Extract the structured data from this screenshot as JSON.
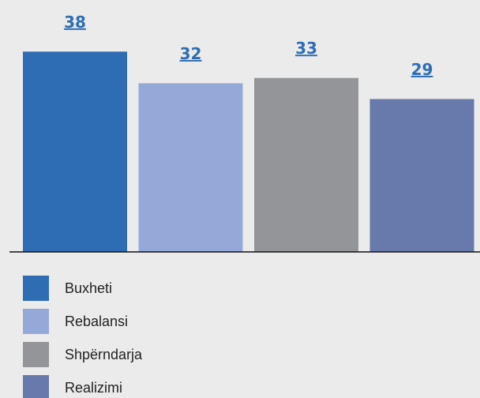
{
  "chart_data": {
    "type": "bar",
    "series": [
      {
        "name": "Buxheti",
        "color": "#2e6db4",
        "values": [
          38
        ]
      },
      {
        "name": "Rebalansi",
        "color": "#95a9d8",
        "values": [
          32
        ]
      },
      {
        "name": "Shpërndarja",
        "color": "#939598",
        "values": [
          33
        ]
      },
      {
        "name": "Realizimi",
        "color": "#687aab",
        "values": [
          29
        ]
      }
    ],
    "ylim": [
      0,
      40
    ]
  }
}
